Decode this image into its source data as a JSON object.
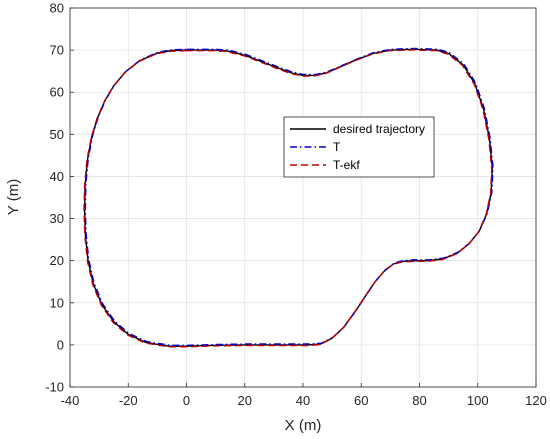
{
  "chart_data": {
    "type": "line",
    "xlabel": "X (m)",
    "ylabel": "Y (m)",
    "xlim": [
      -40,
      120
    ],
    "ylim": [
      -10,
      80
    ],
    "xticks": [
      -40,
      -20,
      0,
      20,
      40,
      60,
      80,
      100,
      120
    ],
    "yticks": [
      -10,
      0,
      10,
      20,
      30,
      40,
      50,
      60,
      70,
      80
    ],
    "grid": true,
    "legend_position": "center-right",
    "path": [
      [
        0,
        70
      ],
      [
        10,
        70
      ],
      [
        14,
        69.8
      ],
      [
        20,
        68.8
      ],
      [
        26,
        67.2
      ],
      [
        32,
        65.6
      ],
      [
        36,
        64.6
      ],
      [
        40,
        64
      ],
      [
        44,
        64
      ],
      [
        48,
        64.6
      ],
      [
        52,
        65.8
      ],
      [
        58,
        67.6
      ],
      [
        64,
        69.2
      ],
      [
        70,
        70
      ],
      [
        78,
        70.2
      ],
      [
        86,
        70
      ],
      [
        90,
        69.2
      ],
      [
        95,
        66.5
      ],
      [
        99,
        62
      ],
      [
        102,
        56
      ],
      [
        104,
        49
      ],
      [
        105,
        42
      ],
      [
        104.6,
        36
      ],
      [
        103,
        31
      ],
      [
        100.5,
        27
      ],
      [
        97,
        24
      ],
      [
        93,
        21.8
      ],
      [
        88,
        20.4
      ],
      [
        83,
        20
      ],
      [
        78,
        20
      ],
      [
        74,
        19.8
      ],
      [
        71,
        19.2
      ],
      [
        68,
        17.6
      ],
      [
        65,
        15.2
      ],
      [
        62,
        12.2
      ],
      [
        58,
        8
      ],
      [
        54,
        4.2
      ],
      [
        50,
        1.6
      ],
      [
        46,
        0.2
      ],
      [
        42,
        0
      ],
      [
        30,
        0
      ],
      [
        20,
        0
      ],
      [
        10,
        -0.1
      ],
      [
        0,
        -0.3
      ],
      [
        -6,
        -0.3
      ],
      [
        -14,
        0.6
      ],
      [
        -20,
        2.5
      ],
      [
        -25,
        5.5
      ],
      [
        -29,
        9.5
      ],
      [
        -32,
        14.5
      ],
      [
        -33.8,
        20
      ],
      [
        -34.7,
        26
      ],
      [
        -35,
        32
      ],
      [
        -34.8,
        38
      ],
      [
        -34,
        44
      ],
      [
        -32.5,
        49.5
      ],
      [
        -30.5,
        54
      ],
      [
        -28,
        58
      ],
      [
        -25,
        61.5
      ],
      [
        -21,
        64.8
      ],
      [
        -16,
        67.5
      ],
      [
        -10,
        69.3
      ],
      [
        -5,
        69.9
      ],
      [
        0,
        70
      ]
    ],
    "series": [
      {
        "name": "desired trajectory",
        "color": "#000000",
        "style": "solid",
        "offset": [
          0,
          0
        ]
      },
      {
        "name": "T",
        "color": "#0000d4",
        "style": "dashdot",
        "offset": [
          0.25,
          0.2
        ]
      },
      {
        "name": "T-ekf",
        "color": "#c00000",
        "style": "dashed",
        "offset": [
          -0.2,
          -0.15
        ]
      }
    ]
  }
}
